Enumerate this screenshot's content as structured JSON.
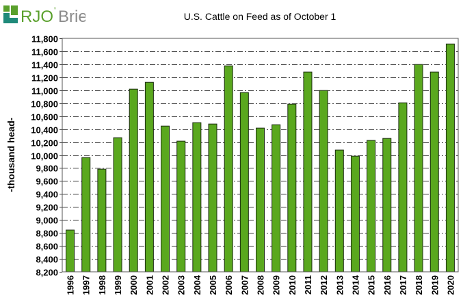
{
  "logo": {
    "text_main": "RJO",
    "text_apostrophe": "'",
    "text_rest": "Brien",
    "colors": {
      "green": "#5aa02c",
      "teal": "#1f8a7a",
      "gray": "#8a8a8a"
    }
  },
  "chart_data": {
    "type": "bar",
    "title": "U.S. Cattle on Feed as of October 1",
    "xlabel": "",
    "ylabel": "-thousand head-",
    "ylim": [
      8200,
      11800
    ],
    "yticks": [
      8200,
      8400,
      8600,
      8800,
      9000,
      9200,
      9400,
      9600,
      9800,
      10000,
      10200,
      10400,
      10600,
      10800,
      11000,
      11200,
      11400,
      11600,
      11800
    ],
    "ytick_labels": [
      "8,200",
      "8,400",
      "8,600",
      "8,800",
      "9,000",
      "9,200",
      "9,400",
      "9,600",
      "9,800",
      "10,000",
      "10,200",
      "10,400",
      "10,600",
      "10,800",
      "11,000",
      "11,200",
      "11,400",
      "11,600",
      "11,800"
    ],
    "grid": true,
    "categories": [
      "1996",
      "1997",
      "1998",
      "1999",
      "2000",
      "2001",
      "2002",
      "2003",
      "2004",
      "2005",
      "2006",
      "2007",
      "2008",
      "2009",
      "2010",
      "2011",
      "2012",
      "2013",
      "2014",
      "2015",
      "2016",
      "2017",
      "2018",
      "2019",
      "2020"
    ],
    "values": [
      8844,
      9962,
      9783,
      10268,
      11017,
      11122,
      10447,
      10215,
      10500,
      10479,
      11376,
      10964,
      10416,
      10468,
      10785,
      11281,
      10996,
      10078,
      9983,
      10226,
      10257,
      10806,
      11397,
      11281,
      11713
    ],
    "bar_color": "#5aa81e",
    "bar_edge": "#1a2a10"
  }
}
